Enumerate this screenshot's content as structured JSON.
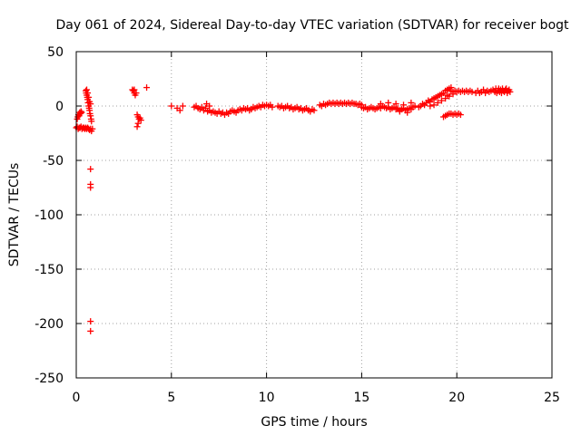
{
  "chart_data": {
    "type": "scatter",
    "title": "Day 061 of 2024, Sidereal Day-to-day VTEC variation (SDTVAR) for receiver bogt",
    "xlabel": "GPS time / hours",
    "ylabel": "SDTVAR / TECUs",
    "xlim": [
      0,
      25
    ],
    "ylim": [
      -250,
      50
    ],
    "xticks": [
      0,
      5,
      10,
      15,
      20,
      25
    ],
    "yticks": [
      -250,
      -200,
      -150,
      -100,
      -50,
      0,
      50
    ],
    "grid": true,
    "marker": "+",
    "color": "#ff0000",
    "series": [
      {
        "name": "SDTVAR",
        "points": [
          [
            0.0,
            -20
          ],
          [
            0.05,
            -19
          ],
          [
            0.1,
            -21
          ],
          [
            0.15,
            -20
          ],
          [
            0.2,
            -20
          ],
          [
            0.25,
            -19
          ],
          [
            0.3,
            -21
          ],
          [
            0.35,
            -20
          ],
          [
            0.4,
            -20
          ],
          [
            0.45,
            -21
          ],
          [
            0.5,
            -20
          ],
          [
            0.55,
            -21
          ],
          [
            0.6,
            -20
          ],
          [
            0.65,
            -21
          ],
          [
            0.7,
            -22
          ],
          [
            0.75,
            -21
          ],
          [
            0.8,
            -23
          ],
          [
            0.85,
            -21
          ],
          [
            0.05,
            -12
          ],
          [
            0.08,
            -10
          ],
          [
            0.12,
            -8
          ],
          [
            0.15,
            -9
          ],
          [
            0.18,
            -6
          ],
          [
            0.22,
            -7
          ],
          [
            0.25,
            -5
          ],
          [
            0.28,
            -6
          ],
          [
            0.5,
            14
          ],
          [
            0.52,
            12
          ],
          [
            0.55,
            10
          ],
          [
            0.55,
            15
          ],
          [
            0.58,
            8
          ],
          [
            0.6,
            6
          ],
          [
            0.6,
            12
          ],
          [
            0.62,
            3
          ],
          [
            0.65,
            0
          ],
          [
            0.65,
            8
          ],
          [
            0.68,
            -2
          ],
          [
            0.7,
            -4
          ],
          [
            0.7,
            4
          ],
          [
            0.72,
            -7
          ],
          [
            0.75,
            -9
          ],
          [
            0.78,
            -12
          ],
          [
            0.8,
            -14
          ],
          [
            0.75,
            2
          ],
          [
            0.75,
            -58
          ],
          [
            0.75,
            -72
          ],
          [
            0.75,
            -75
          ],
          [
            0.75,
            -198
          ],
          [
            0.75,
            -207
          ],
          [
            2.95,
            15
          ],
          [
            3.0,
            14
          ],
          [
            3.05,
            12
          ],
          [
            3.1,
            10
          ],
          [
            3.15,
            12
          ],
          [
            3.05,
            15
          ],
          [
            3.2,
            -8
          ],
          [
            3.25,
            -10
          ],
          [
            3.3,
            -12
          ],
          [
            3.35,
            -11
          ],
          [
            3.4,
            -13
          ],
          [
            3.25,
            -16
          ],
          [
            3.2,
            -19
          ],
          [
            3.7,
            17
          ],
          [
            5.0,
            0
          ],
          [
            5.3,
            -2
          ],
          [
            5.45,
            -4
          ],
          [
            5.6,
            0
          ],
          [
            6.2,
            -1
          ],
          [
            6.3,
            0
          ],
          [
            6.4,
            -2
          ],
          [
            6.5,
            -3
          ],
          [
            6.6,
            -1
          ],
          [
            6.7,
            -4
          ],
          [
            6.8,
            -2
          ],
          [
            6.85,
            2
          ],
          [
            6.9,
            -5
          ],
          [
            7.0,
            -4
          ],
          [
            7.0,
            0
          ],
          [
            7.1,
            -6
          ],
          [
            7.2,
            -5
          ],
          [
            7.3,
            -6
          ],
          [
            7.4,
            -7
          ],
          [
            7.5,
            -5
          ],
          [
            7.6,
            -7
          ],
          [
            7.7,
            -6
          ],
          [
            7.8,
            -8
          ],
          [
            7.9,
            -6
          ],
          [
            8.0,
            -7
          ],
          [
            8.1,
            -5
          ],
          [
            8.2,
            -4
          ],
          [
            8.3,
            -5
          ],
          [
            8.4,
            -6
          ],
          [
            8.5,
            -4
          ],
          [
            8.6,
            -3
          ],
          [
            8.7,
            -4
          ],
          [
            8.8,
            -2
          ],
          [
            8.9,
            -3
          ],
          [
            9.0,
            -2
          ],
          [
            9.1,
            -4
          ],
          [
            9.2,
            -3
          ],
          [
            9.3,
            -1
          ],
          [
            9.4,
            -2
          ],
          [
            9.5,
            -1
          ],
          [
            9.6,
            0
          ],
          [
            9.7,
            -1
          ],
          [
            9.8,
            1
          ],
          [
            9.9,
            0
          ],
          [
            10.0,
            1
          ],
          [
            10.1,
            0
          ],
          [
            10.2,
            1
          ],
          [
            10.3,
            -1
          ],
          [
            10.6,
            0
          ],
          [
            10.7,
            -1
          ],
          [
            10.8,
            0
          ],
          [
            10.9,
            -2
          ],
          [
            11.0,
            -1
          ],
          [
            11.1,
            0
          ],
          [
            11.2,
            -2
          ],
          [
            11.3,
            -1
          ],
          [
            11.4,
            -3
          ],
          [
            11.5,
            -2
          ],
          [
            11.6,
            -1
          ],
          [
            11.7,
            -3
          ],
          [
            11.8,
            -2
          ],
          [
            11.9,
            -4
          ],
          [
            12.0,
            -3
          ],
          [
            12.1,
            -2
          ],
          [
            12.2,
            -4
          ],
          [
            12.3,
            -5
          ],
          [
            12.4,
            -3
          ],
          [
            12.5,
            -4
          ],
          [
            12.8,
            1
          ],
          [
            12.9,
            0
          ],
          [
            13.0,
            2
          ],
          [
            13.1,
            1
          ],
          [
            13.2,
            2
          ],
          [
            13.3,
            3
          ],
          [
            13.4,
            2
          ],
          [
            13.5,
            3
          ],
          [
            13.6,
            2
          ],
          [
            13.7,
            3
          ],
          [
            13.8,
            2
          ],
          [
            13.9,
            3
          ],
          [
            14.0,
            2
          ],
          [
            14.1,
            3
          ],
          [
            14.2,
            2
          ],
          [
            14.3,
            3
          ],
          [
            14.4,
            2
          ],
          [
            14.5,
            3
          ],
          [
            14.6,
            2
          ],
          [
            14.7,
            2
          ],
          [
            14.8,
            1
          ],
          [
            14.9,
            2
          ],
          [
            15.0,
            1
          ],
          [
            15.0,
            -1
          ],
          [
            15.1,
            -2
          ],
          [
            15.2,
            -1
          ],
          [
            15.3,
            -3
          ],
          [
            15.4,
            -2
          ],
          [
            15.5,
            -1
          ],
          [
            15.6,
            -2
          ],
          [
            15.7,
            -3
          ],
          [
            15.8,
            -2
          ],
          [
            15.9,
            -1
          ],
          [
            16.0,
            -2
          ],
          [
            16.1,
            0
          ],
          [
            16.2,
            -1
          ],
          [
            16.3,
            -2
          ],
          [
            16.4,
            -1
          ],
          [
            16.5,
            -3
          ],
          [
            16.6,
            -2
          ],
          [
            16.7,
            -1
          ],
          [
            16.8,
            -3
          ],
          [
            16.9,
            -2
          ],
          [
            17.0,
            -4
          ],
          [
            17.1,
            -3
          ],
          [
            17.2,
            -2
          ],
          [
            17.3,
            -4
          ],
          [
            17.4,
            -3
          ],
          [
            17.5,
            -2
          ],
          [
            17.6,
            -3
          ],
          [
            17.7,
            -1
          ],
          [
            17.8,
            0
          ],
          [
            16.0,
            2
          ],
          [
            16.4,
            3
          ],
          [
            16.8,
            2
          ],
          [
            17.2,
            1
          ],
          [
            17.6,
            3
          ],
          [
            17.0,
            -5
          ],
          [
            17.4,
            -6
          ],
          [
            18.0,
            -1
          ],
          [
            18.1,
            0
          ],
          [
            18.2,
            2
          ],
          [
            18.3,
            1
          ],
          [
            18.4,
            3
          ],
          [
            18.5,
            5
          ],
          [
            18.6,
            4
          ],
          [
            18.7,
            6
          ],
          [
            18.8,
            7
          ],
          [
            18.9,
            8
          ],
          [
            19.0,
            9
          ],
          [
            19.1,
            10
          ],
          [
            19.2,
            11
          ],
          [
            19.3,
            12
          ],
          [
            19.4,
            14
          ],
          [
            19.5,
            15
          ],
          [
            19.6,
            16
          ],
          [
            19.7,
            17
          ],
          [
            18.6,
            0
          ],
          [
            18.8,
            1
          ],
          [
            19.0,
            3
          ],
          [
            19.2,
            5
          ],
          [
            19.4,
            7
          ],
          [
            19.6,
            9
          ],
          [
            19.8,
            11
          ],
          [
            19.5,
            10
          ],
          [
            19.3,
            -10
          ],
          [
            19.4,
            -9
          ],
          [
            19.5,
            -8
          ],
          [
            19.6,
            -7
          ],
          [
            19.7,
            -7
          ],
          [
            19.8,
            -8
          ],
          [
            19.9,
            -7
          ],
          [
            20.0,
            -8
          ],
          [
            20.1,
            -7
          ],
          [
            20.2,
            -8
          ],
          [
            19.7,
            14
          ],
          [
            19.8,
            13
          ],
          [
            19.9,
            14
          ],
          [
            20.0,
            13
          ],
          [
            20.1,
            14
          ],
          [
            20.2,
            13
          ],
          [
            20.3,
            14
          ],
          [
            20.4,
            13
          ],
          [
            20.5,
            14
          ],
          [
            20.6,
            13
          ],
          [
            20.7,
            14
          ],
          [
            20.8,
            13
          ],
          [
            21.0,
            12
          ],
          [
            21.1,
            14
          ],
          [
            21.2,
            12
          ],
          [
            21.3,
            13
          ],
          [
            21.4,
            15
          ],
          [
            21.5,
            12
          ],
          [
            21.6,
            14
          ],
          [
            21.7,
            13
          ],
          [
            21.8,
            14
          ],
          [
            21.9,
            15
          ],
          [
            22.0,
            13
          ],
          [
            22.05,
            16
          ],
          [
            22.1,
            12
          ],
          [
            22.15,
            14
          ],
          [
            22.2,
            16
          ],
          [
            22.25,
            13
          ],
          [
            22.3,
            15
          ],
          [
            22.35,
            12
          ],
          [
            22.4,
            16
          ],
          [
            22.45,
            14
          ],
          [
            22.5,
            13
          ],
          [
            22.55,
            15
          ],
          [
            22.6,
            16
          ],
          [
            22.65,
            12
          ],
          [
            22.7,
            14
          ],
          [
            22.75,
            15
          ],
          [
            22.8,
            13
          ]
        ]
      }
    ]
  }
}
